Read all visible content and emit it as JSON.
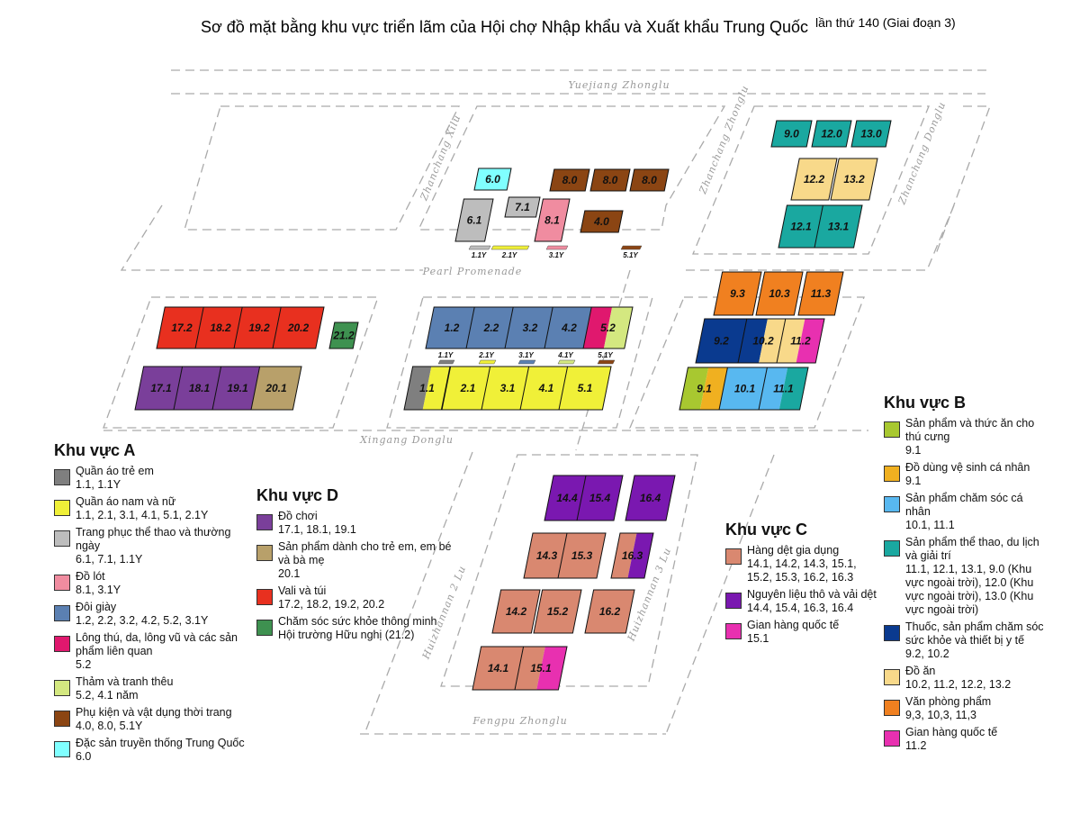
{
  "header": {
    "title": "Sơ đồ mặt bằng khu vực triển lãm của Hội chợ Nhập khẩu và Xuất khẩu Trung Quốc",
    "subtitle": "lần thứ 140 (Giai đoạn 3)"
  },
  "roads": [
    "Yuejiang Zhonglu",
    "Zhanchang Xilu",
    "Zhanchang Zhonglu",
    "Zhanchang Donglu",
    "Pearl Promenade",
    "Xingang Donglu",
    "Huizhannan 2 Lu",
    "Huizhannan 3 Lu",
    "Fengpu Zhonglu"
  ],
  "halls": [
    {
      "label": "6.0",
      "colors": [
        "#80ffff"
      ]
    },
    {
      "label": "7.1",
      "colors": [
        "#bdbdbd"
      ]
    },
    {
      "label": "6.1",
      "colors": [
        "#bdbdbd"
      ]
    },
    {
      "label": "8.1",
      "colors": [
        "#f08ca0"
      ]
    },
    {
      "label": "8.0",
      "colors": [
        "#8b4513"
      ]
    },
    {
      "label": "8.0",
      "colors": [
        "#8b4513"
      ]
    },
    {
      "label": "8.0",
      "colors": [
        "#8b4513"
      ]
    },
    {
      "label": "4.0",
      "colors": [
        "#8b4513"
      ]
    },
    {
      "label": "1.2",
      "colors": [
        "#5b80b2"
      ]
    },
    {
      "label": "2.2",
      "colors": [
        "#5b80b2"
      ]
    },
    {
      "label": "3.2",
      "colors": [
        "#5b80b2"
      ]
    },
    {
      "label": "4.2",
      "colors": [
        "#5b80b2"
      ]
    },
    {
      "label": "5.2",
      "colors": [
        "#e0186e",
        "#d4e880"
      ]
    },
    {
      "label": "1.1",
      "colors": [
        "#7f7f7f",
        "#f0f038"
      ]
    },
    {
      "label": "2.1",
      "colors": [
        "#f0f038"
      ]
    },
    {
      "label": "3.1",
      "colors": [
        "#f0f038"
      ]
    },
    {
      "label": "4.1",
      "colors": [
        "#f0f038"
      ]
    },
    {
      "label": "5.1",
      "colors": [
        "#f0f038"
      ]
    },
    {
      "label": "17.2",
      "colors": [
        "#e8301f"
      ]
    },
    {
      "label": "18.2",
      "colors": [
        "#e8301f"
      ]
    },
    {
      "label": "19.2",
      "colors": [
        "#e8301f"
      ]
    },
    {
      "label": "20.2",
      "colors": [
        "#e8301f"
      ]
    },
    {
      "label": "21.2",
      "colors": [
        "#3e9150"
      ]
    },
    {
      "label": "17.1",
      "colors": [
        "#7a3f9a"
      ]
    },
    {
      "label": "18.1",
      "colors": [
        "#7a3f9a"
      ]
    },
    {
      "label": "19.1",
      "colors": [
        "#7a3f9a"
      ]
    },
    {
      "label": "20.1",
      "colors": [
        "#b8a06a"
      ]
    },
    {
      "label": "9.0",
      "colors": [
        "#1aa8a0"
      ]
    },
    {
      "label": "12.0",
      "colors": [
        "#1aa8a0"
      ]
    },
    {
      "label": "13.0",
      "colors": [
        "#1aa8a0"
      ]
    },
    {
      "label": "12.2",
      "colors": [
        "#f8d98a"
      ]
    },
    {
      "label": "13.2",
      "colors": [
        "#f8d98a"
      ]
    },
    {
      "label": "12.1",
      "colors": [
        "#1aa8a0"
      ]
    },
    {
      "label": "13.1",
      "colors": [
        "#1aa8a0"
      ]
    },
    {
      "label": "9.3",
      "colors": [
        "#f08020"
      ]
    },
    {
      "label": "10.3",
      "colors": [
        "#f08020"
      ]
    },
    {
      "label": "11.3",
      "colors": [
        "#f08020"
      ]
    },
    {
      "label": "9.2",
      "colors": [
        "#0a3a8f"
      ]
    },
    {
      "label": "10.2",
      "colors": [
        "#0a3a8f",
        "#f8d98a"
      ]
    },
    {
      "label": "11.2",
      "colors": [
        "#f8d98a",
        "#e830b0"
      ]
    },
    {
      "label": "9.1",
      "colors": [
        "#a8c830",
        "#f0b020"
      ]
    },
    {
      "label": "10.1",
      "colors": [
        "#58b8f0"
      ]
    },
    {
      "label": "11.1",
      "colors": [
        "#58b8f0",
        "#1aa8a0"
      ]
    },
    {
      "label": "14.4",
      "colors": [
        "#7a18b0"
      ]
    },
    {
      "label": "15.4",
      "colors": [
        "#7a18b0"
      ]
    },
    {
      "label": "16.4",
      "colors": [
        "#7a18b0"
      ]
    },
    {
      "label": "14.3",
      "colors": [
        "#d98870"
      ]
    },
    {
      "label": "15.3",
      "colors": [
        "#d98870"
      ]
    },
    {
      "label": "16.3",
      "colors": [
        "#d98870",
        "#7a18b0"
      ]
    },
    {
      "label": "14.2",
      "colors": [
        "#d98870"
      ]
    },
    {
      "label": "15.2",
      "colors": [
        "#d98870"
      ]
    },
    {
      "label": "16.2",
      "colors": [
        "#d98870"
      ]
    },
    {
      "label": "14.1",
      "colors": [
        "#d98870"
      ]
    },
    {
      "label": "15.1",
      "colors": [
        "#d98870",
        "#e830b0"
      ]
    }
  ],
  "y_halls": [
    {
      "label": "1.1Y",
      "color": "#bdbdbd"
    },
    {
      "label": "2.1Y",
      "color": "#f0f038"
    },
    {
      "label": "3.1Y",
      "color": "#f08ca0"
    },
    {
      "label": "5.1Y",
      "color": "#8b4513"
    },
    {
      "label": "1.1Y",
      "color": "#7f7f7f"
    },
    {
      "label": "2.1Y",
      "color": "#f0f038"
    },
    {
      "label": "3.1Y",
      "color": "#5b80b2"
    },
    {
      "label": "4.1Y",
      "color": "#d4e880"
    },
    {
      "label": "5.1Y",
      "color": "#8b4513"
    }
  ],
  "zones": [
    {
      "title": "Khu vực A",
      "items": [
        {
          "label": "Quần áo trẻ em",
          "halls": "1.1, 1.1Y",
          "color": "#7f7f7f"
        },
        {
          "label": "Quần áo nam và nữ",
          "halls": "1.1, 2.1, 3.1, 4.1, 5.1, 2.1Y",
          "color": "#f0f038"
        },
        {
          "label": "Trang phục thể thao và thường ngày",
          "halls": "6.1, 7.1, 1.1Y",
          "color": "#bdbdbd"
        },
        {
          "label": "Đồ lót",
          "halls": "8.1, 3.1Y",
          "color": "#f08ca0"
        },
        {
          "label": "Đôi giày",
          "halls": "1.2, 2.2, 3.2, 4.2, 5.2, 3.1Y",
          "color": "#5b80b2"
        },
        {
          "label": "Lông thú, da, lông vũ và các sản phẩm liên quan",
          "halls": "5.2",
          "color": "#e0186e"
        },
        {
          "label": "Thảm và tranh thêu",
          "halls": "5.2, 4.1 năm",
          "color": "#d4e880"
        },
        {
          "label": "Phụ kiện và vật dụng thời trang",
          "halls": "4.0, 8.0, 5.1Y",
          "color": "#8b4513"
        },
        {
          "label": "Đặc sản truyền thống Trung Quốc",
          "halls": "6.0",
          "color": "#80ffff"
        }
      ]
    },
    {
      "title": "Khu vực D",
      "items": [
        {
          "label": "Đồ chơi",
          "halls": "17.1, 18.1, 19.1",
          "color": "#7a3f9a"
        },
        {
          "label": "Sản phẩm dành cho trẻ em, em bé và bà mẹ",
          "halls": "20.1",
          "color": "#b8a06a"
        },
        {
          "label": "Vali và túi",
          "halls": "17.2, 18.2, 19.2, 20.2",
          "color": "#e8301f"
        },
        {
          "label": "Chăm sóc sức khỏe thông minh",
          "halls": "Hội trường Hữu nghị (21.2)",
          "color": "#3e9150"
        }
      ]
    },
    {
      "title": "Khu vực C",
      "items": [
        {
          "label": "Hàng dệt gia dụng",
          "halls": "14.1, 14.2, 14.3, 15.1, 15.2, 15.3, 16.2, 16.3",
          "color": "#d98870"
        },
        {
          "label": "Nguyên liệu thô và vải dệt",
          "halls": "14.4, 15.4, 16.3, 16.4",
          "color": "#7a18b0"
        },
        {
          "label": "Gian hàng quốc tế",
          "halls": "15.1",
          "color": "#e830b0"
        }
      ]
    },
    {
      "title": "Khu vực B",
      "items": [
        {
          "label": "Sản phẩm và thức ăn cho thú cưng",
          "halls": "9.1",
          "color": "#a8c830"
        },
        {
          "label": "Đồ dùng vệ sinh cá nhân",
          "halls": "9.1",
          "color": "#f0b020"
        },
        {
          "label": "Sản phẩm chăm sóc cá nhân",
          "halls": "10.1, 11.1",
          "color": "#58b8f0"
        },
        {
          "label": "Sản phẩm thể thao, du lịch và giải trí",
          "halls": "11.1, 12.1, 13.1, 9.0 (Khu vực ngoài trời), 12.0 (Khu vực ngoài trời), 13.0 (Khu vực ngoài trời)",
          "color": "#1aa8a0"
        },
        {
          "label": "Thuốc, sản phẩm chăm sóc sức khỏe và thiết bị y tế",
          "halls": "9.2, 10.2",
          "color": "#0a3a8f"
        },
        {
          "label": "Đồ ăn",
          "halls": "10.2, 11.2, 12.2, 13.2",
          "color": "#f8d98a"
        },
        {
          "label": "Văn phòng phẩm",
          "halls": "9,3, 10,3, 11,3",
          "color": "#f08020"
        },
        {
          "label": "Gian hàng quốc tế",
          "halls": "11.2",
          "color": "#e830b0"
        }
      ]
    }
  ]
}
